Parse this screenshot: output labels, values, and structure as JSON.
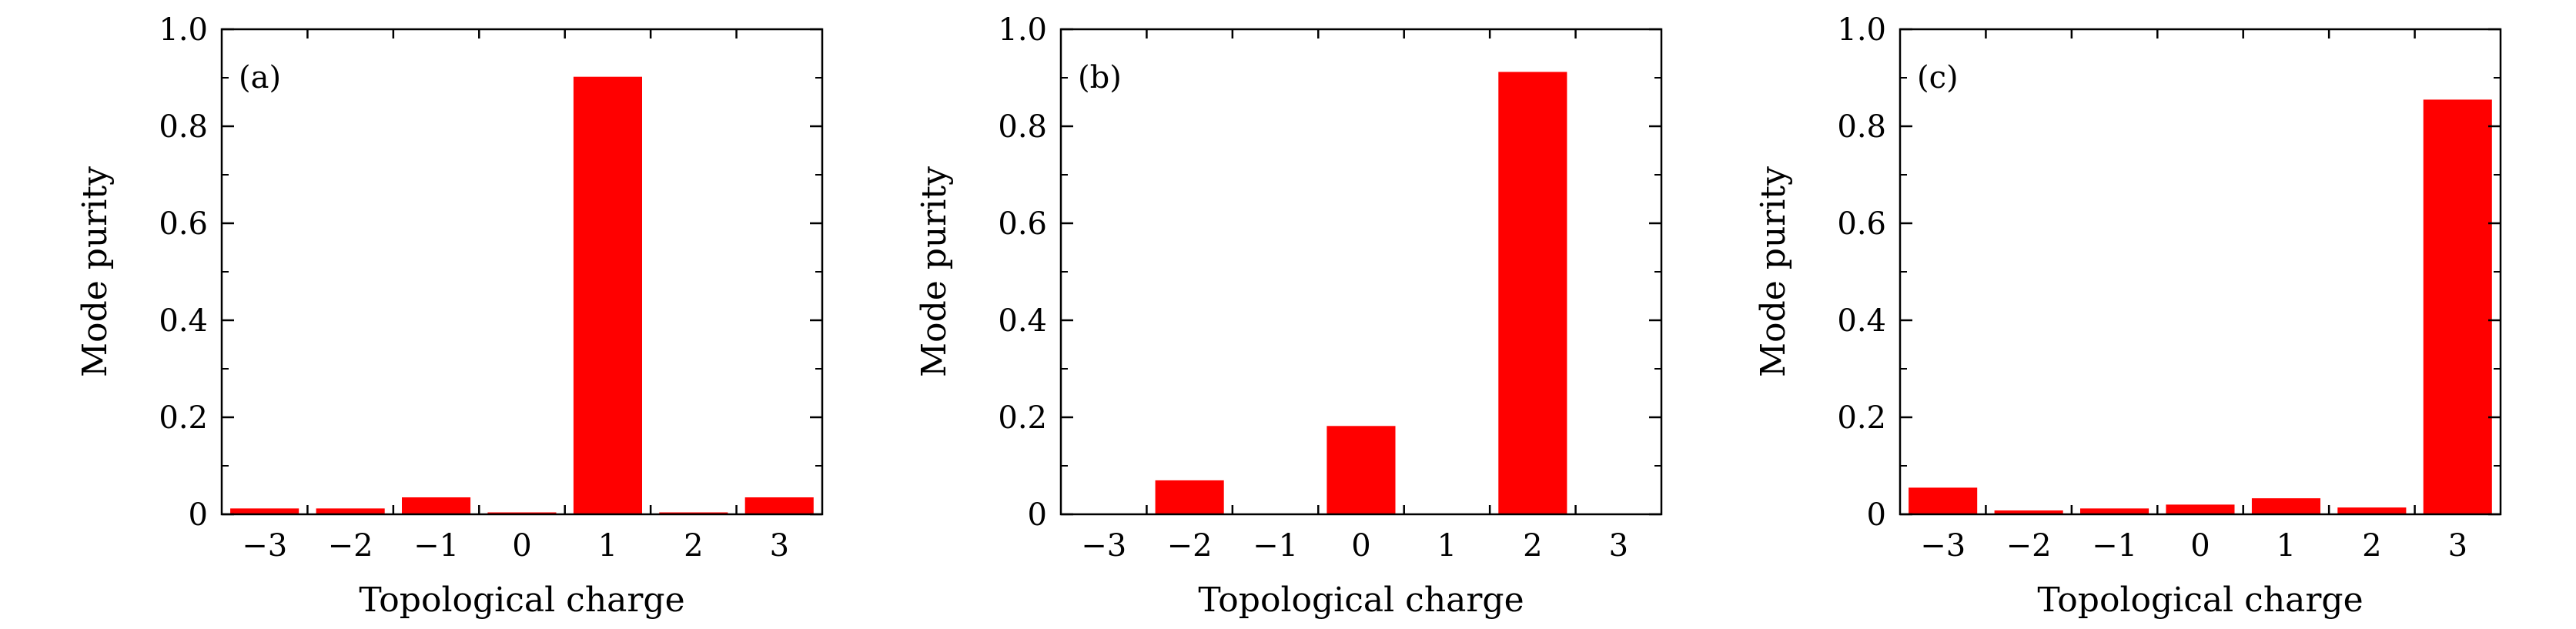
{
  "chart_data": [
    {
      "type": "bar",
      "panel_label": "(a)",
      "categories": [
        "−3",
        "−2",
        "−1",
        "0",
        "1",
        "2",
        "3"
      ],
      "values": [
        0.012,
        0.012,
        0.035,
        0.004,
        0.902,
        0.004,
        0.035
      ],
      "xlabel": "Topological charge",
      "ylabel": "Mode purity",
      "ylim": [
        0,
        1.0
      ],
      "yticks": [
        "0",
        "0.2",
        "0.4",
        "0.6",
        "0.8",
        "1.0"
      ],
      "bar_color": "#ff0000",
      "grid": false
    },
    {
      "type": "bar",
      "panel_label": "(b)",
      "categories": [
        "−3",
        "−2",
        "−1",
        "0",
        "1",
        "2",
        "3"
      ],
      "values": [
        0,
        0.07,
        0,
        0.182,
        0,
        0.912,
        0
      ],
      "xlabel": "Topological charge",
      "ylabel": "Mode purity",
      "ylim": [
        0,
        1.0
      ],
      "yticks": [
        "0",
        "0.2",
        "0.4",
        "0.6",
        "0.8",
        "1.0"
      ],
      "bar_color": "#ff0000",
      "grid": false
    },
    {
      "type": "bar",
      "panel_label": "(c)",
      "categories": [
        "−3",
        "−2",
        "−1",
        "0",
        "1",
        "2",
        "3"
      ],
      "values": [
        0.055,
        0.008,
        0.012,
        0.02,
        0.033,
        0.014,
        0.855
      ],
      "xlabel": "Topological charge",
      "ylabel": "Mode purity",
      "ylim": [
        0,
        1.0
      ],
      "yticks": [
        "0",
        "0.2",
        "0.4",
        "0.6",
        "0.8",
        "1.0"
      ],
      "bar_color": "#ff0000",
      "grid": false
    }
  ]
}
